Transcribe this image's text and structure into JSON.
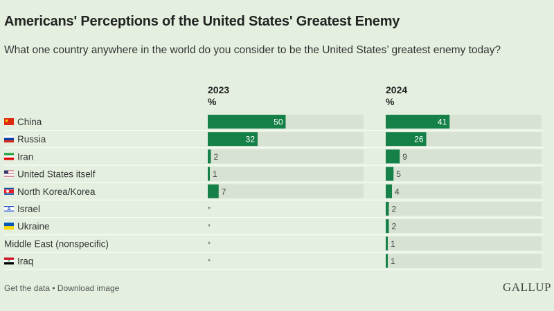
{
  "title": "Americans' Perceptions of the United States' Greatest Enemy",
  "subtitle": "What one country anywhere in the world do you consider to be the United States’ greatest enemy today?",
  "footer": {
    "get_data": "Get the data",
    "separator": " • ",
    "download": "Download image"
  },
  "brand": "GALLUP",
  "colors": {
    "bar": "#158048",
    "track": "#d8e2d3",
    "background": "#e4efdf"
  },
  "chart_data": {
    "type": "bar",
    "title": "Americans' Perceptions of the United States' Greatest Enemy",
    "unit": "%",
    "xlim": [
      0,
      100
    ],
    "categories": [
      "China",
      "Russia",
      "Iran",
      "United States itself",
      "North Korea/Korea",
      "Israel",
      "Ukraine",
      "Middle East (nonspecific)",
      "Iraq"
    ],
    "flags": [
      "china",
      "russia",
      "iran",
      "usa",
      "north-korea",
      "israel",
      "ukraine",
      null,
      "iraq"
    ],
    "series": [
      {
        "name": "2023",
        "unit_label": "%",
        "values": [
          50,
          32,
          2,
          1,
          7,
          null,
          null,
          null,
          null
        ],
        "labels": [
          "50",
          "32",
          "2",
          "1",
          "7",
          "*",
          "*",
          "*",
          "*"
        ]
      },
      {
        "name": "2024",
        "unit_label": "%",
        "values": [
          41,
          26,
          9,
          5,
          4,
          2,
          2,
          1,
          1
        ],
        "labels": [
          "41",
          "26",
          "9",
          "5",
          "4",
          "2",
          "2",
          "1",
          "1"
        ]
      }
    ]
  }
}
